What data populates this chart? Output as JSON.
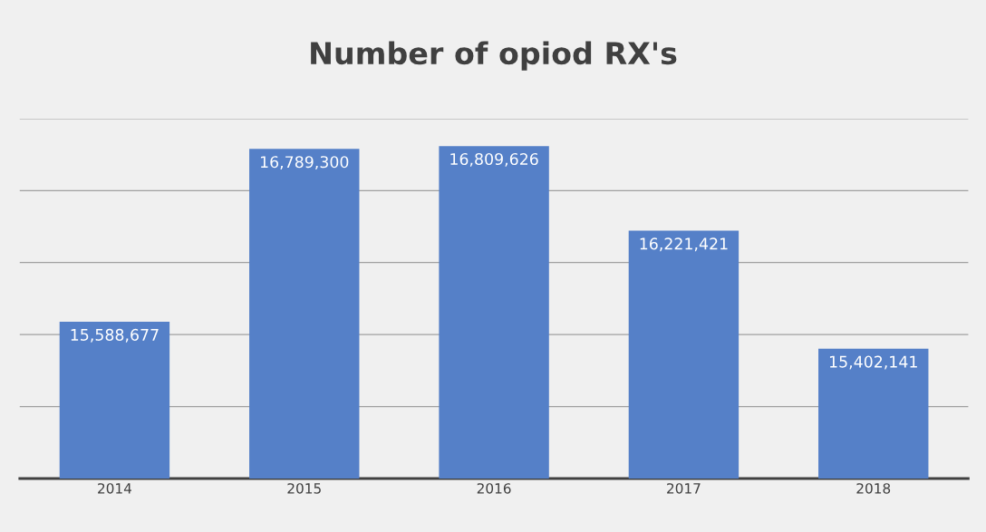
{
  "chart_data": {
    "type": "bar",
    "title": "Number of opiod RX's",
    "categories": [
      "2014",
      "2015",
      "2016",
      "2017",
      "2018"
    ],
    "values": [
      15588677,
      16789300,
      16809626,
      16221421,
      15402141
    ],
    "value_labels": [
      "15,588,677",
      "16,789,300",
      "16,809,626",
      "16,221,421",
      "15,402,141"
    ],
    "color": "#5580c8",
    "ylim": [
      14500000,
      17000000
    ],
    "yticks": [
      {
        "value": 15000000,
        "label": null
      },
      {
        "value": 15500000,
        "label": null
      },
      {
        "value": 16000000,
        "label": null
      },
      {
        "value": 16500000,
        "label": null
      },
      {
        "value": 17000000,
        "label": null
      }
    ],
    "tick_labels": "x",
    "grid": "y"
  }
}
